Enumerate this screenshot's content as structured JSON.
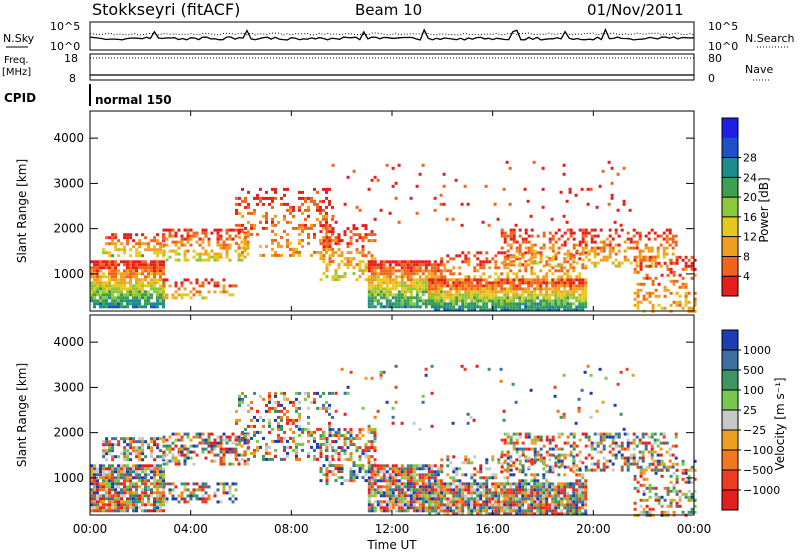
{
  "header": {
    "station": "Stokkseyri (fitACF)",
    "beam": "Beam 10",
    "date": "01/Nov/2011"
  },
  "status": {
    "nsky_label": "N.Sky",
    "nsky_top": "10^5",
    "nsky_bottom": "10^0",
    "nsearch_label": "N.Search",
    "nsearch_top": "10^5",
    "nsearch_bottom": "10^0",
    "freq_label_1": "Freq.",
    "freq_label_2": "[MHz]",
    "freq_top": "18",
    "freq_bottom": "8",
    "nave_label": "Nave",
    "nave_top": "80",
    "nave_bottom": "0",
    "cpid_label": "CPID",
    "cpid_value": "normal 150"
  },
  "x_axis": {
    "label": "Time UT",
    "ticks": [
      "00:00",
      "04:00",
      "08:00",
      "12:00",
      "16:00",
      "20:00",
      "00:00"
    ]
  },
  "chart_data": [
    {
      "type": "heatmap",
      "name": "power",
      "ylabel": "Slant Range [km]",
      "ylim": [
        180,
        4600
      ],
      "y_ticks": [
        1000,
        2000,
        3000,
        4000
      ],
      "colorbar": {
        "label": "Power [dB]",
        "tick_labels": [
          "4",
          "8",
          "12",
          "16",
          "20",
          "24",
          "28"
        ],
        "colors": [
          "#1e1ee6",
          "#1e50c8",
          "#1e8c8c",
          "#3ca050",
          "#8cc83c",
          "#e6c81e",
          "#f0a01e",
          "#f0641e",
          "#e61e1e"
        ]
      }
    },
    {
      "type": "heatmap",
      "name": "velocity",
      "ylabel": "Slant Range [km]",
      "ylim": [
        180,
        4600
      ],
      "y_ticks": [
        1000,
        2000,
        3000,
        4000
      ],
      "colorbar": {
        "label": "Velocity [m s⁻¹]",
        "tick_labels": [
          "1000",
          "500",
          "100",
          "25",
          "−25",
          "−100",
          "−500",
          "−1000"
        ],
        "colors": [
          "#1e3cb4",
          "#3c6ea0",
          "#3c9664",
          "#78c850",
          "#c8c8c8",
          "#f0a01e",
          "#f0781e",
          "#f03c1e",
          "#e61e1e"
        ]
      }
    }
  ]
}
